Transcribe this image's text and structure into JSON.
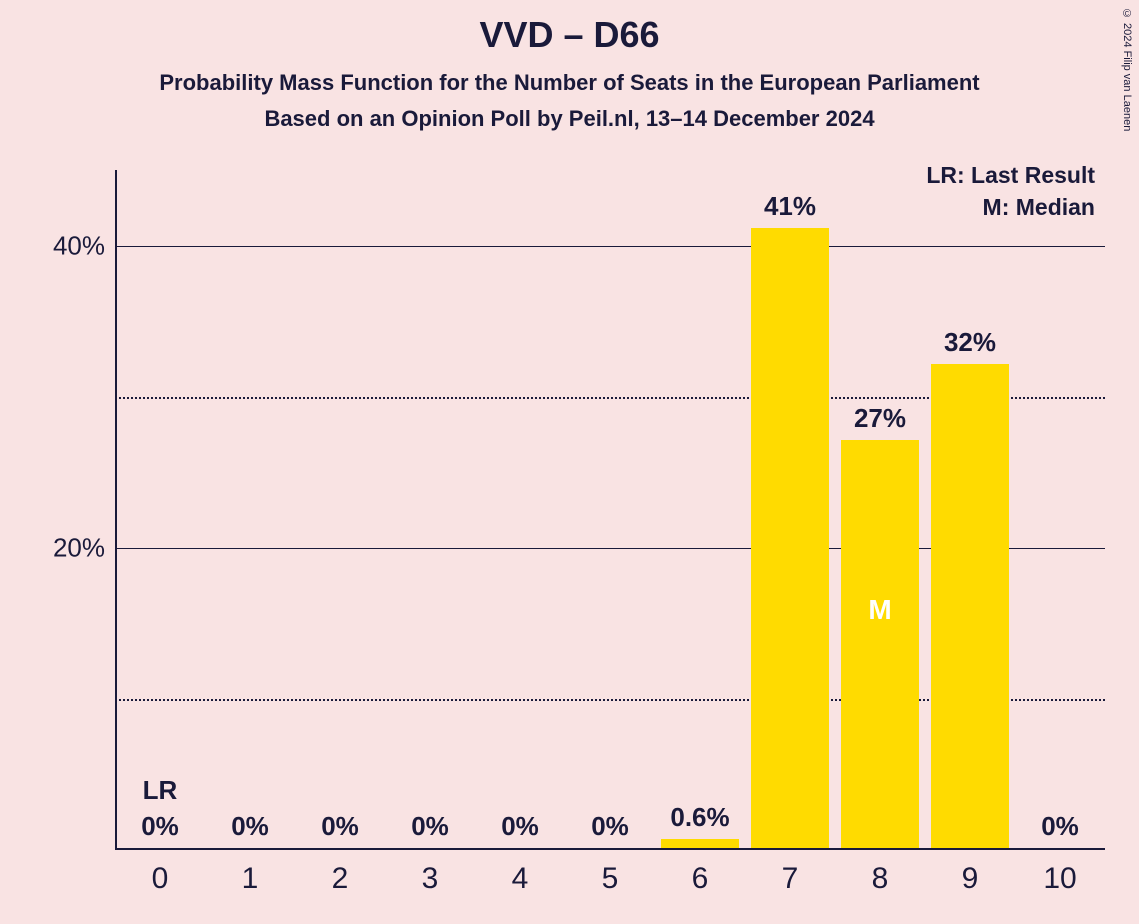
{
  "copyright": "© 2024 Filip van Laenen",
  "title": "VVD – D66",
  "subtitle": "Probability Mass Function for the Number of Seats in the European Parliament",
  "subtitle2": "Based on an Opinion Poll by Peil.nl, 13–14 December 2024",
  "legend_lr": "LR: Last Result",
  "legend_m": "M: Median",
  "lr_mark": "LR",
  "median_mark": "M",
  "chart": {
    "type": "bar",
    "background_color": "#f9e3e3",
    "bar_color": "#ffdb00",
    "text_color": "#1a1a3a",
    "median_text_color": "#ffffff",
    "ylim": [
      0,
      45
    ],
    "y_major_ticks": [
      20,
      40
    ],
    "y_minor_ticks": [
      10,
      30
    ],
    "y_tick_labels": {
      "20": "20%",
      "40": "40%"
    },
    "categories": [
      "0",
      "1",
      "2",
      "3",
      "4",
      "5",
      "6",
      "7",
      "8",
      "9",
      "10"
    ],
    "values": [
      0,
      0,
      0,
      0,
      0,
      0,
      0.6,
      41,
      27,
      32,
      0
    ],
    "value_labels": [
      "0%",
      "0%",
      "0%",
      "0%",
      "0%",
      "0%",
      "0.6%",
      "41%",
      "27%",
      "32%",
      "0%"
    ],
    "lr_index": 0,
    "median_index": 8,
    "bar_width_ratio": 0.86,
    "title_fontsize": 36,
    "subtitle_fontsize": 22,
    "axis_label_fontsize": 26,
    "xtick_fontsize": 30
  }
}
